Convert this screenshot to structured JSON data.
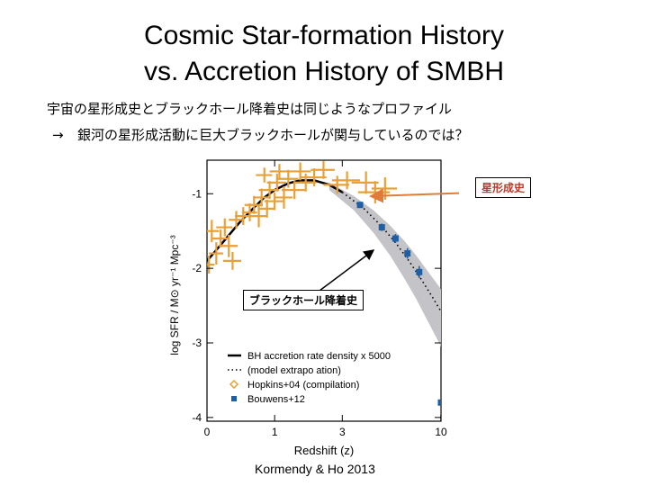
{
  "slide": {
    "title_line1": "Cosmic Star-formation History",
    "title_line2": "vs. Accretion History of SMBH",
    "text_line1": "宇宙の星形成史とブラックホール降着史は同じようなプロファイル",
    "text_line2_arrow": "→",
    "text_line2": "銀河の星形成活動に巨大ブラックホールが関与しているのでは？",
    "credit": "Kormendy & Ho 2013"
  },
  "colors": {
    "hopkins": "#e8a038",
    "bouwens": "#1f5fa6",
    "band": "#c4c4c8",
    "arrow": "#e07b39"
  },
  "chart_data": {
    "type": "scatter",
    "xlabel": "Redshift (z)",
    "ylabel": "log SFR / M⊙ yr⁻¹ Mpc⁻³",
    "x_scale": "log(1+z)",
    "xlim": [
      0,
      10
    ],
    "ylim": [
      -4.05,
      -0.55
    ],
    "x_ticks": [
      {
        "value": 0,
        "label": "0"
      },
      {
        "value": 1,
        "label": "1"
      },
      {
        "value": 3,
        "label": "3"
      },
      {
        "value": 10,
        "label": "10"
      }
    ],
    "y_ticks": [
      {
        "value": -1,
        "label": "-1"
      },
      {
        "value": -2,
        "label": "-2"
      },
      {
        "value": -3,
        "label": "-3"
      },
      {
        "value": -4,
        "label": "-4"
      }
    ],
    "series": [
      {
        "name": "BH accretion rate density x 5000",
        "kind": "line",
        "x": [
          0,
          0.2,
          0.4,
          0.6,
          0.8,
          1.0,
          1.3,
          1.6,
          2.0,
          2.5,
          3.0
        ],
        "y": [
          -1.9,
          -1.62,
          -1.38,
          -1.2,
          -1.05,
          -0.95,
          -0.86,
          -0.82,
          -0.82,
          -0.88,
          -0.98
        ]
      },
      {
        "name": "(model extrapolation)",
        "kind": "dotted",
        "x": [
          3.0,
          4.0,
          5.0,
          6.0,
          7.0,
          8.0,
          9.0,
          10.0
        ],
        "y": [
          -0.98,
          -1.2,
          -1.44,
          -1.68,
          -1.92,
          -2.15,
          -2.37,
          -2.58
        ]
      },
      {
        "name": "Hopkins+04 (compilation)",
        "kind": "errorbars",
        "points": [
          {
            "x": 0.02,
            "y": -1.95,
            "xerr": 0.06,
            "yerr": 0.12
          },
          {
            "x": 0.05,
            "y": -1.5,
            "xerr": 0.08,
            "yerr": 0.15
          },
          {
            "x": 0.1,
            "y": -1.8,
            "xerr": 0.08,
            "yerr": 0.15
          },
          {
            "x": 0.15,
            "y": -1.6,
            "xerr": 0.1,
            "yerr": 0.12
          },
          {
            "x": 0.2,
            "y": -1.45,
            "xerr": 0.1,
            "yerr": 0.12
          },
          {
            "x": 0.25,
            "y": -1.7,
            "xerr": 0.12,
            "yerr": 0.15
          },
          {
            "x": 0.3,
            "y": -1.9,
            "xerr": 0.12,
            "yerr": 0.12
          },
          {
            "x": 0.35,
            "y": -1.35,
            "xerr": 0.1,
            "yerr": 0.12
          },
          {
            "x": 0.45,
            "y": -1.3,
            "xerr": 0.12,
            "yerr": 0.12
          },
          {
            "x": 0.55,
            "y": -1.25,
            "xerr": 0.12,
            "yerr": 0.12
          },
          {
            "x": 0.62,
            "y": -1.15,
            "xerr": 0.15,
            "yerr": 0.12
          },
          {
            "x": 0.7,
            "y": -1.3,
            "xerr": 0.15,
            "yerr": 0.15
          },
          {
            "x": 0.75,
            "y": -1.05,
            "xerr": 0.15,
            "yerr": 0.12
          },
          {
            "x": 0.8,
            "y": -0.75,
            "xerr": 0.15,
            "yerr": 0.1
          },
          {
            "x": 0.85,
            "y": -1.2,
            "xerr": 0.15,
            "yerr": 0.12
          },
          {
            "x": 0.9,
            "y": -0.95,
            "xerr": 0.2,
            "yerr": 0.12
          },
          {
            "x": 1.0,
            "y": -1.1,
            "xerr": 0.2,
            "yerr": 0.12
          },
          {
            "x": 1.05,
            "y": -0.85,
            "xerr": 0.2,
            "yerr": 0.12
          },
          {
            "x": 1.1,
            "y": -0.7,
            "xerr": 0.2,
            "yerr": 0.1
          },
          {
            "x": 1.2,
            "y": -1.05,
            "xerr": 0.2,
            "yerr": 0.15
          },
          {
            "x": 1.3,
            "y": -0.8,
            "xerr": 0.25,
            "yerr": 0.12
          },
          {
            "x": 1.45,
            "y": -0.95,
            "xerr": 0.3,
            "yerr": 0.12
          },
          {
            "x": 1.6,
            "y": -0.7,
            "xerr": 0.3,
            "yerr": 0.12
          },
          {
            "x": 1.75,
            "y": -0.85,
            "xerr": 0.3,
            "yerr": 0.12
          },
          {
            "x": 2.0,
            "y": -0.78,
            "xerr": 0.4,
            "yerr": 0.12
          },
          {
            "x": 2.3,
            "y": -0.68,
            "xerr": 0.4,
            "yerr": 0.12
          },
          {
            "x": 2.8,
            "y": -0.88,
            "xerr": 0.5,
            "yerr": 0.12
          },
          {
            "x": 3.2,
            "y": -0.82,
            "xerr": 0.6,
            "yerr": 0.12
          },
          {
            "x": 4.1,
            "y": -0.85,
            "xerr": 0.7,
            "yerr": 0.15
          },
          {
            "x": 4.6,
            "y": -0.98,
            "xerr": 0.9,
            "yerr": 0.15
          },
          {
            "x": 5.2,
            "y": -0.93,
            "xerr": 0.8,
            "yerr": 0.15
          }
        ]
      },
      {
        "name": "Bouwens+12",
        "kind": "squares",
        "points": [
          {
            "x": 3.8,
            "y": -1.15,
            "yerr": 0.04
          },
          {
            "x": 5.0,
            "y": -1.45,
            "yerr": 0.05
          },
          {
            "x": 5.9,
            "y": -1.6,
            "yerr": 0.06
          },
          {
            "x": 6.8,
            "y": -1.8,
            "yerr": 0.07
          },
          {
            "x": 7.8,
            "y": -2.05,
            "yerr": 0.08
          },
          {
            "x": 10.0,
            "y": -3.8,
            "yerr": 0.6
          }
        ]
      }
    ],
    "band": {
      "x": [
        2.5,
        3.5,
        4.5,
        5.5,
        6.5,
        7.5,
        8.5,
        10.0
      ],
      "lower": [
        -0.95,
        -1.22,
        -1.52,
        -1.82,
        -2.12,
        -2.4,
        -2.68,
        -3.05
      ],
      "upper": [
        -0.85,
        -1.03,
        -1.22,
        -1.42,
        -1.62,
        -1.82,
        -2.02,
        -2.28
      ]
    },
    "legend": {
      "position": "bottom-right",
      "entries": [
        "BH accretion rate density x 5000",
        "(model extrapo ation)",
        "Hopkins+04 (compilation)",
        "Bouwens+12"
      ]
    },
    "annotations": [
      {
        "text": "星形成史",
        "target": "Hopkins+04 points"
      },
      {
        "text": "ブラックホール降着史",
        "target": "BH accretion curve"
      }
    ]
  }
}
